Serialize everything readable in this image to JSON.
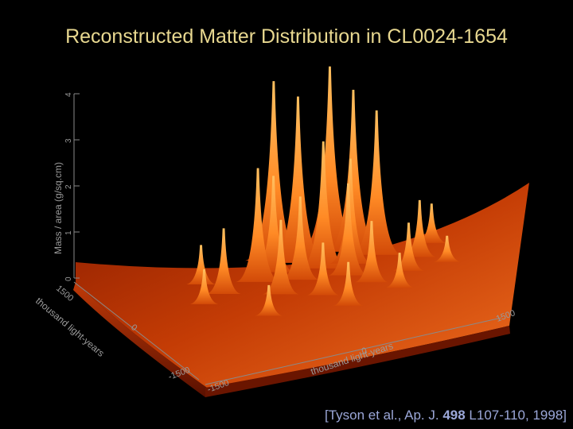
{
  "title": "Reconstructed Matter Distribution in CL0024-1654",
  "citation": {
    "prefix": "[Tyson et al., Ap. J. ",
    "volume": "498",
    "suffix": " L107-110, 1998]"
  },
  "colors": {
    "background": "#000000",
    "title": "#e8d890",
    "citation": "#9ba7d8",
    "surface_low": "#7a1600",
    "surface_high": "#ffb050"
  },
  "chart_data": {
    "type": "surface",
    "zlabel": "Mass / area (g/sq.cm)",
    "zticks": [
      "0",
      "1",
      "2",
      "3",
      "4"
    ],
    "zlim": [
      0,
      4
    ],
    "xlabel": "thousand light-years",
    "xticks": [
      "-1500",
      "0",
      "1500"
    ],
    "ylabel": "thousand light-years",
    "yticks": [
      "-1500",
      "0",
      "1500"
    ],
    "grid": false,
    "peaks": [
      {
        "x": -200,
        "y": 1200,
        "z": 4.1
      },
      {
        "x": -50,
        "y": 1050,
        "z": 3.8
      },
      {
        "x": 200,
        "y": 1250,
        "z": 4.2
      },
      {
        "x": 350,
        "y": 1100,
        "z": 3.7
      },
      {
        "x": 500,
        "y": 900,
        "z": 3.3
      },
      {
        "x": 100,
        "y": 800,
        "z": 2.9
      },
      {
        "x": -400,
        "y": 700,
        "z": 2.6
      },
      {
        "x": -700,
        "y": 500,
        "z": 1.5
      },
      {
        "x": -900,
        "y": 300,
        "z": 0.8
      },
      {
        "x": -300,
        "y": 300,
        "z": 1.7
      },
      {
        "x": 0,
        "y": 100,
        "z": 1.2
      },
      {
        "x": 250,
        "y": 500,
        "z": 2.1
      },
      {
        "x": 400,
        "y": 200,
        "z": 1.4
      },
      {
        "x": 800,
        "y": 600,
        "z": 1.3
      },
      {
        "x": 900,
        "y": 900,
        "z": 0.9
      },
      {
        "x": 600,
        "y": -100,
        "z": 0.8
      },
      {
        "x": -500,
        "y": -200,
        "z": 0.7
      },
      {
        "x": 150,
        "y": -300,
        "z": 1.0
      },
      {
        "x": -100,
        "y": 600,
        "z": 1.9
      },
      {
        "x": 300,
        "y": 800,
        "z": 2.4
      },
      {
        "x": -250,
        "y": 900,
        "z": 2.2
      },
      {
        "x": 700,
        "y": 300,
        "z": 1.1
      },
      {
        "x": -800,
        "y": 800,
        "z": 0.9
      },
      {
        "x": 1000,
        "y": 300,
        "z": 0.6
      }
    ]
  }
}
